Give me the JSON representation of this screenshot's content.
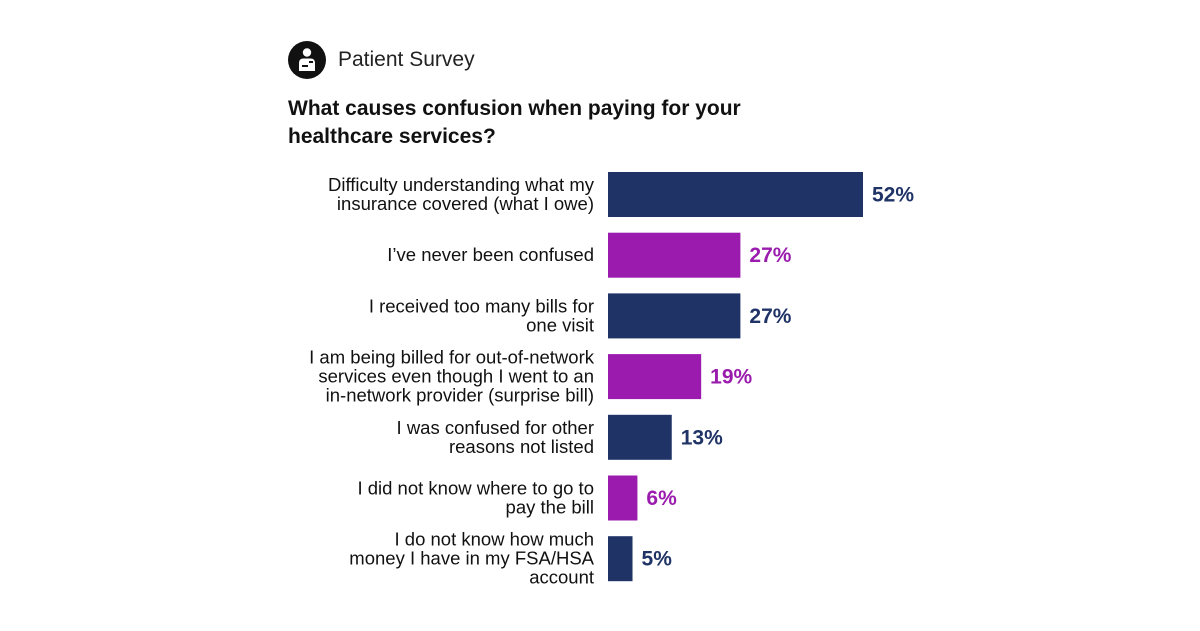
{
  "header": {
    "label": "Patient Survey",
    "icon": "patient-person-icon"
  },
  "chart_data": {
    "type": "bar",
    "orientation": "horizontal",
    "title": "What causes confusion when paying for your healthcare services?",
    "categories": [
      [
        "Difficulty understanding what my",
        "insurance covered (what I owe)"
      ],
      [
        "I’ve never been confused"
      ],
      [
        "I received too many bills for",
        "one visit"
      ],
      [
        "I am being billed for out-of-network",
        "services even though I went to an",
        "in-network provider (surprise bill)"
      ],
      [
        "I was confused for other",
        "reasons not listed"
      ],
      [
        "I did not know where to go to",
        "pay the bill"
      ],
      [
        "I do not know how much",
        "money I have in my FSA/HSA",
        "account"
      ]
    ],
    "values": [
      52,
      27,
      27,
      19,
      13,
      6,
      5
    ],
    "value_labels": [
      "52%",
      "27%",
      "27%",
      "19%",
      "13%",
      "6%",
      "5%"
    ],
    "colors": [
      "#1f3366",
      "#9a1bad",
      "#1f3366",
      "#9a1bad",
      "#1f3366",
      "#9a1bad",
      "#1f3366"
    ],
    "xlim": [
      0,
      52
    ],
    "grid": false,
    "legend": "none"
  }
}
